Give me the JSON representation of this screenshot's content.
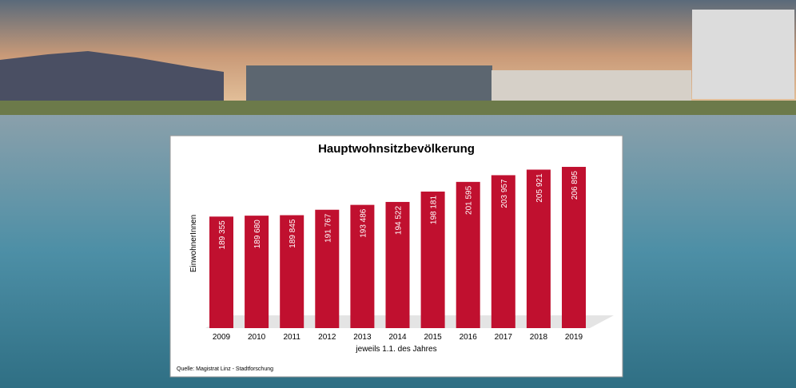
{
  "chart_data": {
    "type": "bar",
    "title": "Hauptwohnsitzbevölkerung",
    "y_label": "EinwohnerInnen",
    "x_label": "jeweils 1.1. des Jahres",
    "source": "Quelle: Magistrat Linz - Stadtforschung",
    "categories": [
      "2009",
      "2010",
      "2011",
      "2012",
      "2013",
      "2014",
      "2015",
      "2016",
      "2017",
      "2018",
      "2019"
    ],
    "values": [
      189355,
      189680,
      189845,
      191767,
      193486,
      194522,
      198181,
      201595,
      203957,
      205921,
      206895
    ],
    "value_labels": [
      "189 355",
      "189 680",
      "189 845",
      "191 767",
      "193 486",
      "194 522",
      "198 181",
      "201 595",
      "203 957",
      "205 921",
      "206 895"
    ],
    "color": "#c0102f",
    "ylim": [
      150000,
      210000
    ]
  }
}
